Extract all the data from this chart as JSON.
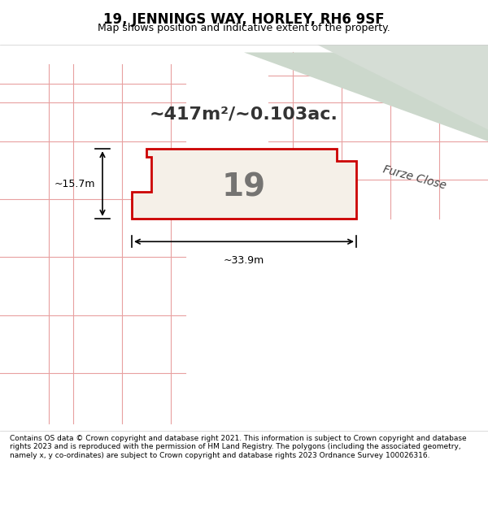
{
  "title": "19, JENNINGS WAY, HORLEY, RH6 9SF",
  "subtitle": "Map shows position and indicative extent of the property.",
  "footer": "Contains OS data © Crown copyright and database right 2021. This information is subject to Crown copyright and database rights 2023 and is reproduced with the permission of HM Land Registry. The polygons (including the associated geometry, namely x, y co-ordinates) are subject to Crown copyright and database rights 2023 Ordnance Survey 100026316.",
  "area_label": "~417m²/~0.103ac.",
  "property_number": "19",
  "width_label": "~33.9m",
  "height_label": "~15.7m",
  "street_label": "Furze Close",
  "bg_color": "#e8ede8",
  "map_bg": "#e0e8e0",
  "property_fill": "#f5f0e8",
  "property_edge": "#cc0000",
  "grid_line_color": "#e8a0a0",
  "road_color": "#d0d8d0",
  "header_bg": "#ffffff",
  "footer_bg": "#ffffff",
  "figsize": [
    6.0,
    6.25
  ],
  "dpi": 100
}
